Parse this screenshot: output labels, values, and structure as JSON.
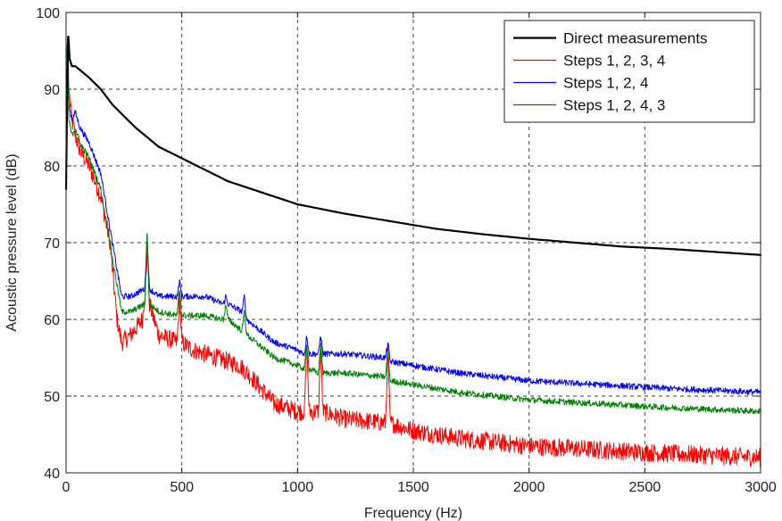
{
  "chart_data": {
    "type": "line",
    "xlabel": "Frequency (Hz)",
    "ylabel": "Acoustic pressure level (dB)",
    "xlim": [
      0,
      3000
    ],
    "ylim": [
      40,
      100
    ],
    "xticks": [
      0,
      500,
      1000,
      1500,
      2000,
      2500,
      3000
    ],
    "yticks": [
      40,
      50,
      60,
      70,
      80,
      90,
      100
    ],
    "grid": true,
    "legend_position": "top-right",
    "series": [
      {
        "name": "Direct measurements",
        "color": "#000000",
        "width": 2.2,
        "noise": 0,
        "x": [
          0,
          8,
          15,
          25,
          40,
          60,
          100,
          150,
          200,
          300,
          400,
          500,
          600,
          700,
          800,
          900,
          1000,
          1200,
          1400,
          1600,
          1800,
          2000,
          2200,
          2400,
          2600,
          2800,
          3000
        ],
        "y": [
          77,
          98,
          94,
          93,
          93,
          92.5,
          91.5,
          90,
          88,
          85,
          82.5,
          81,
          79.5,
          78,
          77,
          76,
          75,
          73.8,
          72.8,
          71.8,
          71.1,
          70.5,
          70,
          69.5,
          69.2,
          68.8,
          68.4
        ]
      },
      {
        "name": "Steps 1, 2, 3, 4",
        "color": "#ff0000",
        "width": 1,
        "noise": 2.4,
        "x": [
          0,
          5,
          12,
          25,
          40,
          60,
          100,
          150,
          190,
          220,
          240,
          280,
          330,
          348,
          352,
          360,
          400,
          480,
          490,
          500,
          550,
          600,
          650,
          700,
          750,
          800,
          900,
          1000,
          1030,
          1040,
          1050,
          1090,
          1100,
          1110,
          1200,
          1380,
          1390,
          1400,
          1500,
          1700,
          2000,
          2300,
          2600,
          3000
        ],
        "y": [
          76,
          98,
          90,
          86,
          84,
          82,
          80,
          76,
          70,
          60,
          57,
          58,
          60,
          66,
          70,
          62,
          58,
          57,
          63,
          57,
          56,
          55.5,
          55,
          54.5,
          54,
          52.5,
          49,
          48,
          48,
          57,
          48,
          48,
          56,
          48,
          47,
          46.5,
          56,
          46.5,
          45.5,
          44.5,
          43.5,
          43,
          42.5,
          42
        ]
      },
      {
        "name": "Steps 1, 2, 4",
        "color": "#0000ff",
        "width": 1,
        "noise": 0.8,
        "x": [
          0,
          5,
          12,
          25,
          40,
          60,
          100,
          150,
          200,
          240,
          280,
          340,
          350,
          360,
          400,
          480,
          490,
          500,
          600,
          680,
          690,
          700,
          760,
          770,
          780,
          900,
          1000,
          1030,
          1040,
          1050,
          1090,
          1100,
          1110,
          1200,
          1380,
          1390,
          1400,
          1500,
          1700,
          2000,
          2300,
          2600,
          3000
        ],
        "y": [
          80,
          98,
          88,
          86,
          87,
          85,
          83,
          79,
          70,
          63,
          63,
          64,
          71,
          64,
          63,
          63,
          65,
          63,
          63,
          62,
          63,
          62,
          61,
          63,
          60,
          57,
          56,
          55.5,
          58,
          55.5,
          55.5,
          58,
          55.5,
          55.5,
          55,
          57,
          54.5,
          54,
          53,
          52,
          51.5,
          51,
          50.5
        ]
      },
      {
        "name": "Steps 1, 2, 4, 3",
        "color": "#008000",
        "width": 1,
        "noise": 0.8,
        "x": [
          0,
          5,
          12,
          25,
          40,
          60,
          100,
          150,
          200,
          240,
          280,
          340,
          350,
          360,
          400,
          480,
          490,
          500,
          600,
          680,
          690,
          700,
          760,
          770,
          780,
          900,
          1000,
          1030,
          1040,
          1050,
          1090,
          1100,
          1110,
          1200,
          1380,
          1390,
          1400,
          1500,
          1700,
          2000,
          2300,
          2600,
          3000
        ],
        "y": [
          80,
          98,
          86,
          84,
          85,
          83,
          81,
          77,
          68,
          61,
          61,
          62,
          71,
          62,
          61,
          60.5,
          64,
          60.5,
          60.5,
          60,
          62,
          60,
          58.5,
          61,
          58,
          55,
          54,
          53.5,
          57,
          53.5,
          53,
          57,
          53,
          53,
          52.5,
          56,
          52,
          51.5,
          50.5,
          49.5,
          49,
          48.5,
          48
        ]
      }
    ]
  }
}
